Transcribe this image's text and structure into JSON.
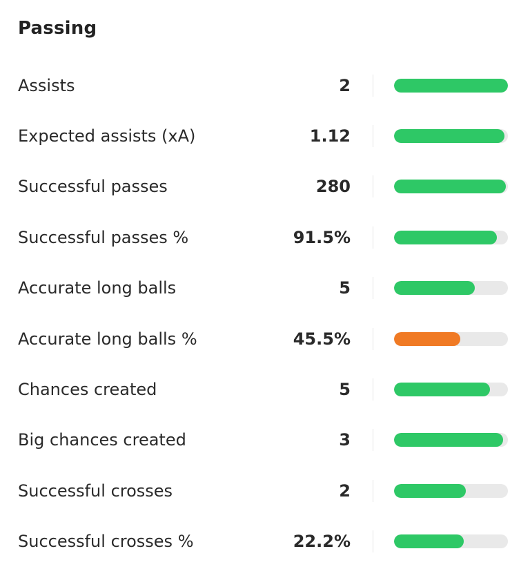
{
  "section": {
    "title": "Passing"
  },
  "colors": {
    "good": "#2ec866",
    "warning": "#f07a24",
    "track": "#e9e9e9"
  },
  "stats": [
    {
      "label": "Assists",
      "value": "2",
      "fill": 1.0,
      "status": "good"
    },
    {
      "label": "Expected assists (xA)",
      "value": "1.12",
      "fill": 0.97,
      "status": "good"
    },
    {
      "label": "Successful passes",
      "value": "280",
      "fill": 0.98,
      "status": "good"
    },
    {
      "label": "Successful passes %",
      "value": "91.5%",
      "fill": 0.9,
      "status": "good"
    },
    {
      "label": "Accurate long balls",
      "value": "5",
      "fill": 0.71,
      "status": "good"
    },
    {
      "label": "Accurate long balls %",
      "value": "45.5%",
      "fill": 0.58,
      "status": "warning"
    },
    {
      "label": "Chances created",
      "value": "5",
      "fill": 0.84,
      "status": "good"
    },
    {
      "label": "Big chances created",
      "value": "3",
      "fill": 0.96,
      "status": "good"
    },
    {
      "label": "Successful crosses",
      "value": "2",
      "fill": 0.63,
      "status": "good"
    },
    {
      "label": "Successful crosses %",
      "value": "22.2%",
      "fill": 0.61,
      "status": "good"
    }
  ]
}
